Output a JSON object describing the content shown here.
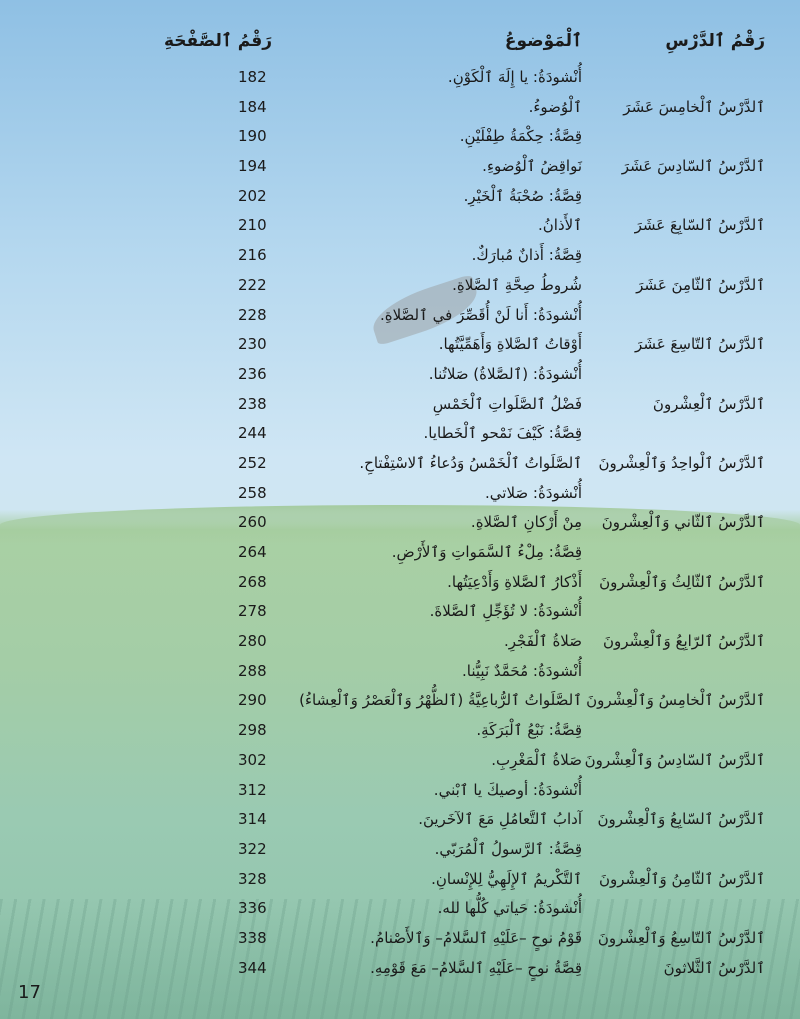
{
  "header": {
    "lesson": "رَقْمُ ٱلدَّرْسِ",
    "topic": "ٱلْمَوْضوعُ",
    "page": "رَقْمُ ٱلصَّفْحَةِ"
  },
  "rows": [
    {
      "lesson": "",
      "topic": "أُنْشودَةُ: يا إِلَهَ ٱلْكَوْنِ.",
      "page": "182"
    },
    {
      "lesson": "ٱلدَّرْسُ ٱلْخامِسَ عَشَرَ",
      "topic": "ٱلْوُضوءُ.",
      "page": "184"
    },
    {
      "lesson": "",
      "topic": "قِصَّةُ: حِكْمَةُ طِفْلَيْنِ.",
      "page": "190"
    },
    {
      "lesson": "ٱلدَّرْسُ ٱلسّادِسَ عَشَرَ",
      "topic": "نَواقِضُ ٱلْوُضوءِ.",
      "page": "194"
    },
    {
      "lesson": "",
      "topic": "قِصَّةُ: صُحْبَةُ ٱلْخَيْرِ.",
      "page": "202"
    },
    {
      "lesson": "ٱلدَّرْسُ ٱلسّابِعَ عَشَرَ",
      "topic": "ٱلأَذانُ.",
      "page": "210"
    },
    {
      "lesson": "",
      "topic": "قِصَّةُ: أَذانٌ مُبارَكٌ.",
      "page": "216"
    },
    {
      "lesson": "ٱلدَّرْسُ ٱلثّامِنَ عَشَرَ",
      "topic": "شُروطُ صِحَّةِ ٱلصَّلاةِ.",
      "page": "222"
    },
    {
      "lesson": "",
      "topic": "أُنْشودَةُ: أَنا لَنْ أُقَصِّرَ في ٱلصَّلاةِ.",
      "page": "228"
    },
    {
      "lesson": "ٱلدَّرْسُ ٱلتّاسِعَ عَشَرَ",
      "topic": "أَوْقاتُ ٱلصَّلاةِ وَأَهَمِّيَّتُها.",
      "page": "230"
    },
    {
      "lesson": "",
      "topic": "أُنْشودَةُ: (ٱلصَّلاةُ) صَلاتُنا.",
      "page": "236"
    },
    {
      "lesson": "ٱلدَّرْسُ ٱلْعِشْرونَ",
      "topic": "فَضْلُ ٱلصَّلَواتِ ٱلْخَمْسِ",
      "page": "238"
    },
    {
      "lesson": "",
      "topic": "قِصَّةُ: كَيْفَ نَمْحو ٱلْخَطايا.",
      "page": "244"
    },
    {
      "lesson": "ٱلدَّرْسُ ٱلْواحِدُ وَٱلْعِشْرونَ",
      "topic": "ٱلصَّلَواتُ ٱلْخَمْسُ وَدُعاءُ ٱلاسْتِفْتاحِ.",
      "page": "252"
    },
    {
      "lesson": "",
      "topic": "أُنْشودَةُ: صَلاتي.",
      "page": "258"
    },
    {
      "lesson": "ٱلدَّرْسُ ٱلثّاني وَٱلْعِشْرونَ",
      "topic": "مِنْ أَرْكانِ ٱلصَّلاةِ.",
      "page": "260"
    },
    {
      "lesson": "",
      "topic": "قِصَّةُ: مِلْءُ ٱلسَّمَواتِ وَٱلأَرْضِ.",
      "page": "264"
    },
    {
      "lesson": "ٱلدَّرْسُ ٱلثّالِثُ وَٱلْعِشْرونَ",
      "topic": "أَذْكارُ ٱلصَّلاةِ وَأَدْعِيَتُها.",
      "page": "268"
    },
    {
      "lesson": "",
      "topic": "أُنْشودَةُ: لا تُؤَجِّلِ ٱلصَّلاةَ.",
      "page": "278"
    },
    {
      "lesson": "ٱلدَّرْسُ ٱلرّابِعُ وَٱلْعِشْرونَ",
      "topic": "صَلاةُ ٱلْفَجْرِ.",
      "page": "280"
    },
    {
      "lesson": "",
      "topic": "أُنْشودَةُ: مُحَمَّدٌ نَبِيُّنا.",
      "page": "288"
    },
    {
      "lesson": "ٱلدَّرْسُ ٱلْخامِسُ وَٱلْعِشْرونَ",
      "topic": "ٱلصَّلَواتُ ٱلرُّباعِيَّةُ (ٱلظُّهْرُ وَٱلْعَصْرُ وَٱلْعِشاءُ)",
      "page": "290"
    },
    {
      "lesson": "",
      "topic": "قِصَّةُ: نَبْعُ ٱلْبَرَكَةِ.",
      "page": "298"
    },
    {
      "lesson": "ٱلدَّرْسُ ٱلسّادِسُ وَٱلْعِشْرونَ",
      "topic": "صَلاةُ ٱلْمَغْرِبِ.",
      "page": "302"
    },
    {
      "lesson": "",
      "topic": "أُنْشودَةُ: أوصيكَ يا ٱبْني.",
      "page": "312"
    },
    {
      "lesson": "ٱلدَّرْسُ ٱلسّابِعُ وَٱلْعِشْرونَ",
      "topic": "آدابُ ٱلتَّعامُلِ مَعَ ٱلآخَرينَ.",
      "page": "314"
    },
    {
      "lesson": "",
      "topic": "قِصَّةُ: ٱلرَّسولُ ٱلْمُرَبّي.",
      "page": "322"
    },
    {
      "lesson": "ٱلدَّرْسُ ٱلثّامِنُ وَٱلْعِشْرونَ",
      "topic": "ٱلتَّكْريمُ ٱلإِلَهِيُّ لِلإِنْسانِ.",
      "page": "328"
    },
    {
      "lesson": "",
      "topic": "أُنْشودَةُ: حَياتي كُلُّها لله.",
      "page": "336"
    },
    {
      "lesson": "ٱلدَّرْسُ ٱلتّاسِعُ وَٱلْعِشْرونَ",
      "topic": "قَوْمُ نوحٍ –عَلَيْهِ ٱلسَّلامُ– وَٱلأَصْنامُ.",
      "page": "338"
    },
    {
      "lesson": "ٱلدَّرْسُ ٱلثَّلاثونَ",
      "topic": "قِصَّةُ نوحٍ –عَلَيْهِ ٱلسَّلامُ– مَعَ قَوْمِهِ.",
      "page": "344"
    }
  ],
  "page_number": "17"
}
